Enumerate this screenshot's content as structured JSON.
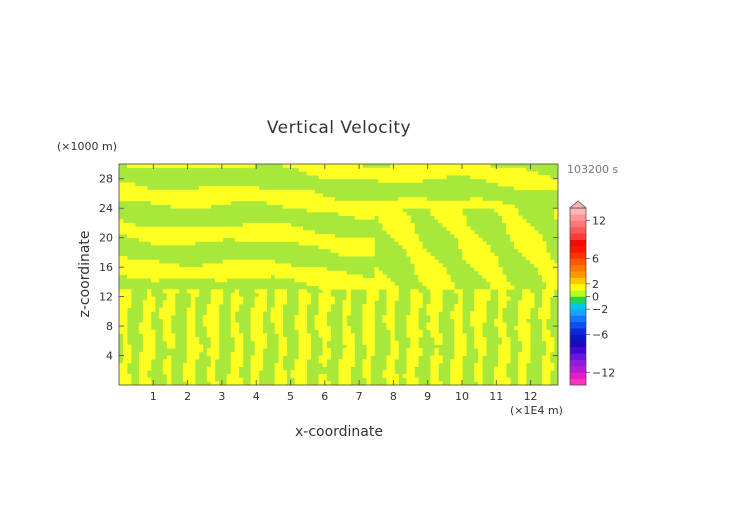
{
  "chart_data": {
    "type": "heatmap",
    "title": "Vertical Velocity",
    "xlabel": "x-coordinate",
    "ylabel": "z-coordinate",
    "x_units": "(×1E4 m)",
    "y_units": "(×1000 m)",
    "time_label": "103200 s",
    "xlim": [
      0,
      12.8
    ],
    "ylim": [
      0,
      30
    ],
    "x_ticks": [
      1,
      2,
      3,
      4,
      5,
      6,
      7,
      8,
      9,
      10,
      11,
      12
    ],
    "y_ticks": [
      4,
      8,
      12,
      16,
      20,
      24,
      28
    ],
    "colorbar": {
      "range": [
        -14,
        14
      ],
      "tick_values": [
        12,
        6,
        2,
        0,
        -2,
        -6,
        -12
      ],
      "tick_labels": [
        "12",
        "6",
        "2",
        "0",
        "−2",
        "−6",
        "−12"
      ],
      "over_arrow": true,
      "levels": [
        {
          "from": -14,
          "to": -13,
          "color": "#ff33bb"
        },
        {
          "from": -13,
          "to": -12,
          "color": "#e41ec8"
        },
        {
          "from": -12,
          "to": -11,
          "color": "#b41ed2"
        },
        {
          "from": -11,
          "to": -10,
          "color": "#8c1edc"
        },
        {
          "from": -10,
          "to": -9,
          "color": "#6e14dc"
        },
        {
          "from": -9,
          "to": -8,
          "color": "#3c0ad2"
        },
        {
          "from": -8,
          "to": -7,
          "color": "#1e0ab4"
        },
        {
          "from": -7,
          "to": -6,
          "color": "#0a14c8"
        },
        {
          "from": -6,
          "to": -5,
          "color": "#0a28dc"
        },
        {
          "from": -5,
          "to": -4,
          "color": "#0a50f0"
        },
        {
          "from": -4,
          "to": -3,
          "color": "#1478ff"
        },
        {
          "from": -3,
          "to": -2,
          "color": "#1ea0ff"
        },
        {
          "from": -2,
          "to": -1,
          "color": "#00c8e6"
        },
        {
          "from": -1,
          "to": 0,
          "color": "#28d25a"
        },
        {
          "from": 0,
          "to": 1,
          "color": "#b4ff1e"
        },
        {
          "from": 1,
          "to": 2,
          "color": "#ffff00"
        },
        {
          "from": 2,
          "to": 3,
          "color": "#ffc800"
        },
        {
          "from": 3,
          "to": 4,
          "color": "#ff9600"
        },
        {
          "from": 4,
          "to": 5,
          "color": "#ff7800"
        },
        {
          "from": 5,
          "to": 6,
          "color": "#ff5a00"
        },
        {
          "from": 6,
          "to": 7,
          "color": "#ff3200"
        },
        {
          "from": 7,
          "to": 8,
          "color": "#ff1400"
        },
        {
          "from": 8,
          "to": 9,
          "color": "#f00a00"
        },
        {
          "from": 9,
          "to": 10,
          "color": "#ff3c3c"
        },
        {
          "from": 10,
          "to": 11,
          "color": "#ff5a5a"
        },
        {
          "from": 11,
          "to": 12,
          "color": "#ff7878"
        },
        {
          "from": 12,
          "to": 13,
          "color": "#ff9696"
        },
        {
          "from": 13,
          "to": 14,
          "color": "#ffb4b4"
        }
      ]
    },
    "field_colors": {
      "background": "#a8e83a",
      "updraft": "#ffff22"
    }
  }
}
